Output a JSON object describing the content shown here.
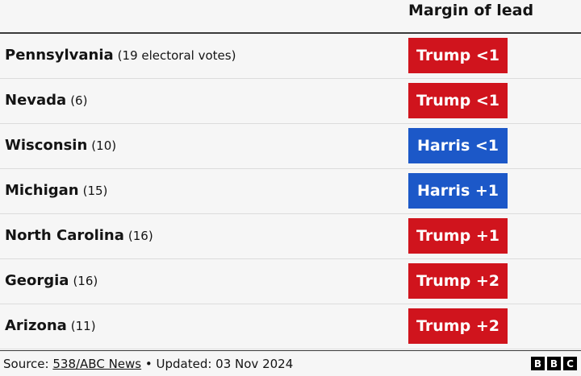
{
  "header": {
    "column_title": "Margin of lead"
  },
  "table": {
    "rows": [
      {
        "state": "Pennsylvania",
        "votes": "(19 electoral votes)",
        "lead": "Trump <1",
        "color": "#d0141d"
      },
      {
        "state": "Nevada",
        "votes": "(6)",
        "lead": "Trump <1",
        "color": "#d0141d"
      },
      {
        "state": "Wisconsin",
        "votes": "(10)",
        "lead": "Harris <1",
        "color": "#1c58c8"
      },
      {
        "state": "Michigan",
        "votes": "(15)",
        "lead": "Harris +1",
        "color": "#1c58c8"
      },
      {
        "state": "North Carolina",
        "votes": "(16)",
        "lead": "Trump +1",
        "color": "#d0141d"
      },
      {
        "state": "Georgia",
        "votes": "(16)",
        "lead": "Trump +2",
        "color": "#d0141d"
      },
      {
        "state": "Arizona",
        "votes": "(11)",
        "lead": "Trump +2",
        "color": "#d0141d"
      }
    ]
  },
  "footer": {
    "source_label": "Source:",
    "source_link": "538/ABC News",
    "updated": "• Updated: 03 Nov 2024",
    "logo": [
      "B",
      "B",
      "C"
    ]
  }
}
